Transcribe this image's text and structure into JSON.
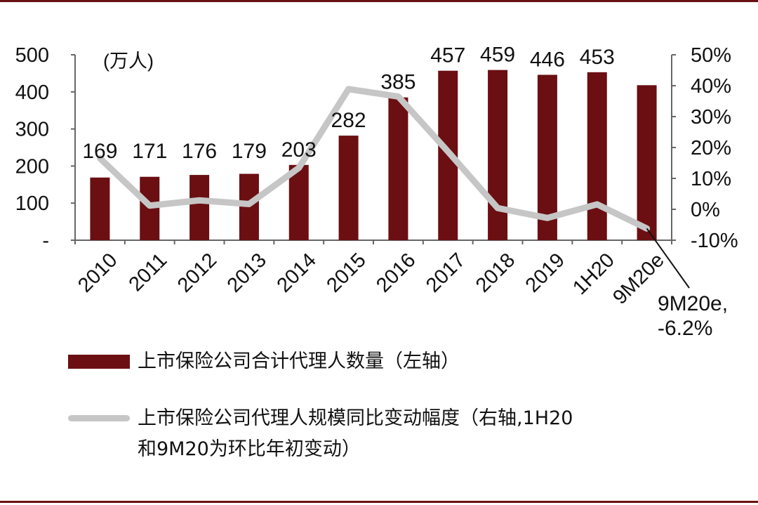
{
  "chart_data": {
    "type": "bar",
    "categories": [
      "2010",
      "2011",
      "2012",
      "2013",
      "2014",
      "2015",
      "2016",
      "2017",
      "2018",
      "2019",
      "1H20",
      "9M20e"
    ],
    "unit_label": "(万人)",
    "series": [
      {
        "name": "上市保险公司合计代理人数量（左轴",
        "axis": "left",
        "type": "bar",
        "values": [
          169,
          171,
          176,
          179,
          203,
          282,
          385,
          457,
          459,
          446,
          453,
          418
        ],
        "data_labels": [
          "169",
          "171",
          "176",
          "179",
          "203",
          "282",
          "385",
          "457",
          "459",
          "446",
          "453",
          ""
        ],
        "color": "#6b0f12"
      },
      {
        "name": "上市保险公司代理人规模同比变动幅度（右轴,1H20和9M20为环比年初变动）",
        "axis": "right",
        "type": "line",
        "values": [
          16.5,
          1.2,
          2.9,
          1.7,
          13.4,
          38.9,
          36.5,
          18.7,
          0.4,
          -2.8,
          1.6,
          -6.2
        ],
        "color": "#c6c6c6"
      }
    ],
    "y_left": {
      "min": 0,
      "max": 500,
      "ticks": [
        0,
        100,
        200,
        300,
        400,
        500
      ],
      "tick_labels": [
        "-",
        "100",
        "200",
        "300",
        "400",
        "500"
      ]
    },
    "y_right": {
      "min": -10,
      "max": 50,
      "ticks": [
        -10,
        0,
        10,
        20,
        30,
        40,
        50
      ],
      "tick_labels": [
        "-10%",
        "0%",
        "10%",
        "20%",
        "30%",
        "40%",
        "50%"
      ]
    },
    "annotation": {
      "line1": "9M20e,",
      "line2": "-6.2%",
      "target_index": 11
    },
    "grid": false,
    "legend_position": "bottom"
  },
  "legend": {
    "bar_label": "上市保险公司合计代理人数量（左轴）",
    "line_label_1": "上市保险公司代理人规模同比变动幅度（右轴,1H20",
    "line_label_2": "和9M20为环比年初变动）"
  },
  "colors": {
    "accent": "#6b0f12",
    "line": "#c6c6c6",
    "rule": "#6b0f12"
  }
}
